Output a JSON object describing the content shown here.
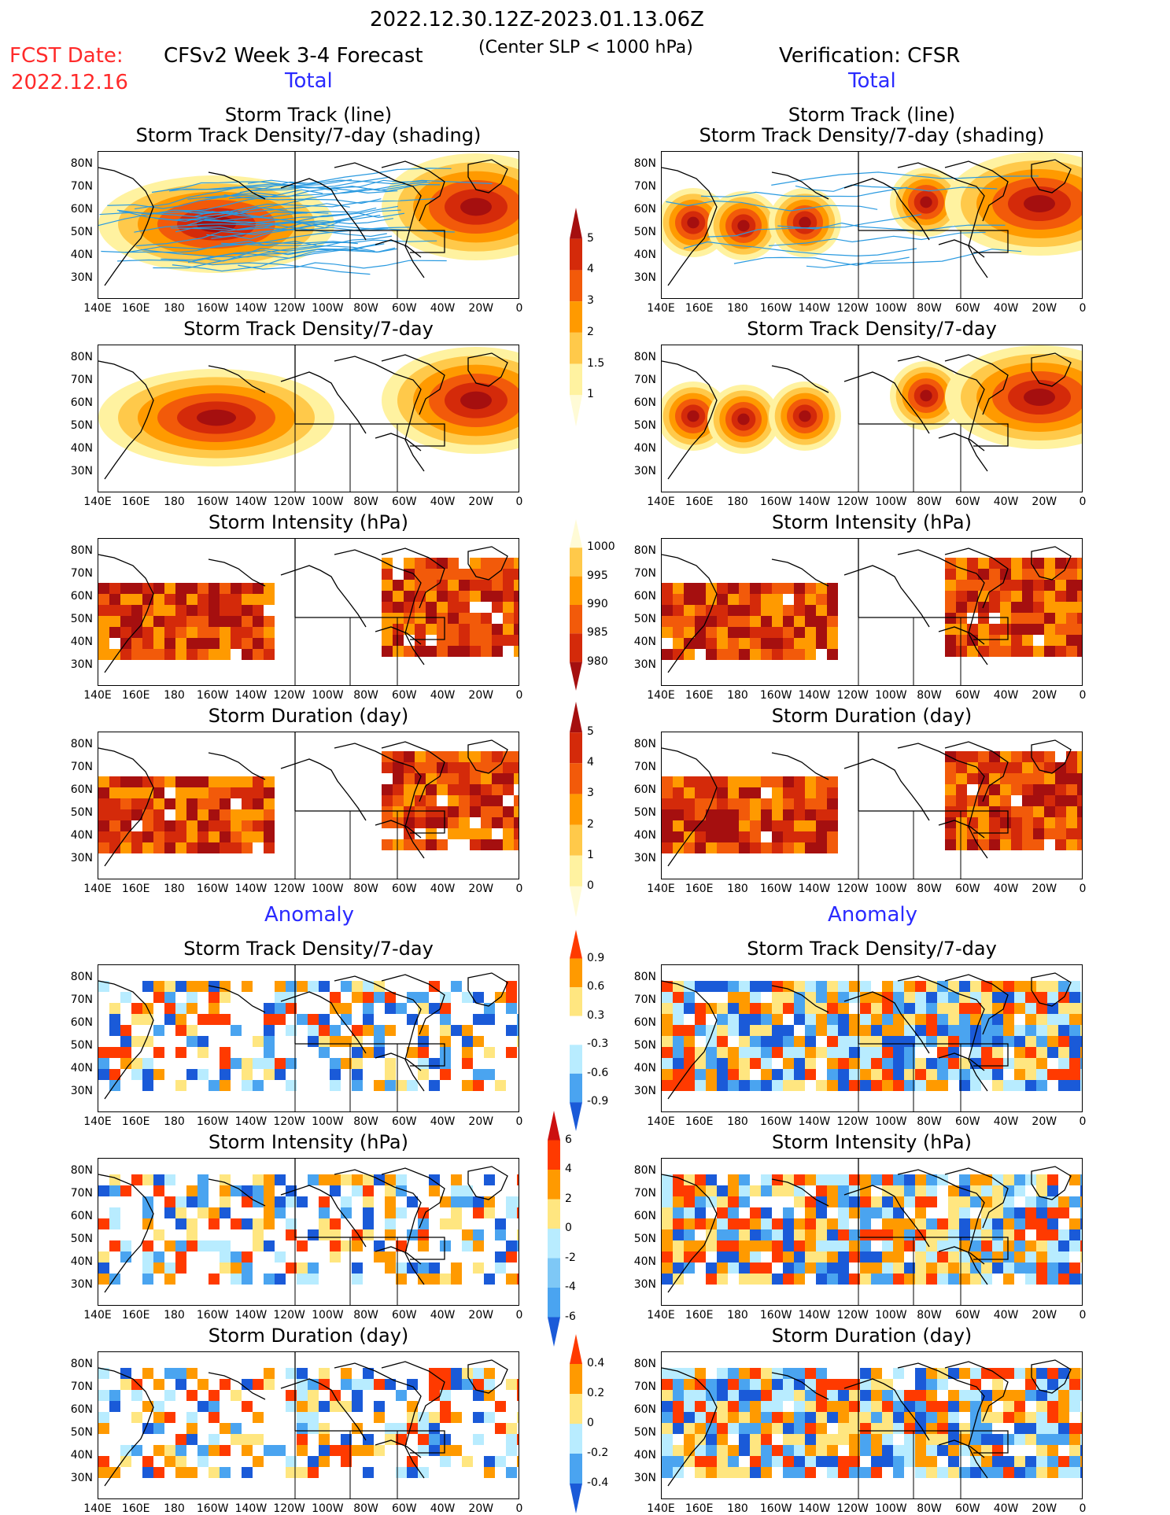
{
  "header": {
    "date_range": "2022.12.30.12Z-2023.01.13.06Z",
    "criterion": "(Center SLP < 1000 hPa)",
    "fcst_label": "FCST Date:",
    "fcst_date": "2022.12.16",
    "left_title": "CFSv2 Week 3-4 Forecast",
    "right_title": "Verification: CFSR"
  },
  "sections": {
    "total": "Total",
    "anomaly": "Anomaly"
  },
  "panel_titles": {
    "track_line": "Storm Track (line)",
    "track_shading": "Storm Track Density/7-day (shading)",
    "density": "Storm Track Density/7-day",
    "intensity": "Storm Intensity (hPa)",
    "duration": "Storm Duration (day)"
  },
  "axes": {
    "lat_labels": [
      "80N",
      "70N",
      "60N",
      "50N",
      "40N",
      "30N"
    ],
    "lon_labels": [
      "140E",
      "160E",
      "180",
      "160W",
      "140W",
      "120W",
      "100W",
      "80W",
      "60W",
      "40W",
      "20W",
      "0"
    ]
  },
  "colorbars": {
    "density_total": {
      "labels": [
        "5",
        "4",
        "3",
        "2",
        "1.5",
        "1"
      ],
      "colors": [
        "#a50f0f",
        "#d42a0a",
        "#f25a0a",
        "#ff9a00",
        "#ffc94a",
        "#fff2a0",
        "#fffbd6"
      ]
    },
    "intensity_total": {
      "labels": [
        "1000",
        "995",
        "990",
        "985",
        "980"
      ],
      "colors": [
        "#fffbd6",
        "#ffc94a",
        "#ff9a00",
        "#f25a0a",
        "#d42a0a",
        "#a50f0f"
      ]
    },
    "duration_total": {
      "labels": [
        "5",
        "4",
        "3",
        "2",
        "1",
        "0"
      ],
      "colors": [
        "#a50f0f",
        "#d42a0a",
        "#f25a0a",
        "#ff9a00",
        "#ffc94a",
        "#fff2a0",
        "#fffbd6"
      ]
    },
    "density_anom": {
      "labels": [
        "0.9",
        "0.6",
        "0.3",
        "-0.3",
        "-0.6",
        "-0.9"
      ],
      "colors": [
        "#ff3a00",
        "#ff9a00",
        "#ffe680",
        "#ffffff",
        "#b8ecff",
        "#4aa4f0",
        "#1a5ad8"
      ]
    },
    "intensity_anom": {
      "labels": [
        "6",
        "4",
        "2",
        "0",
        "-2",
        "-4",
        "-6"
      ],
      "colors": [
        "#cc1010",
        "#ff3a00",
        "#ff9a00",
        "#ffe680",
        "#b8ecff",
        "#7ec8f6",
        "#4aa4f0",
        "#1a5ad8"
      ]
    },
    "duration_anom": {
      "labels": [
        "0.4",
        "0.2",
        "0",
        "-0.2",
        "-0.4"
      ],
      "colors": [
        "#ff3a00",
        "#ff9a00",
        "#ffe680",
        "#b8ecff",
        "#4aa4f0",
        "#1a5ad8"
      ]
    }
  },
  "colors": {
    "track_line": "#2a9ae0",
    "highlight_red": "#ff2a2a",
    "highlight_blue": "#2a2aff"
  }
}
